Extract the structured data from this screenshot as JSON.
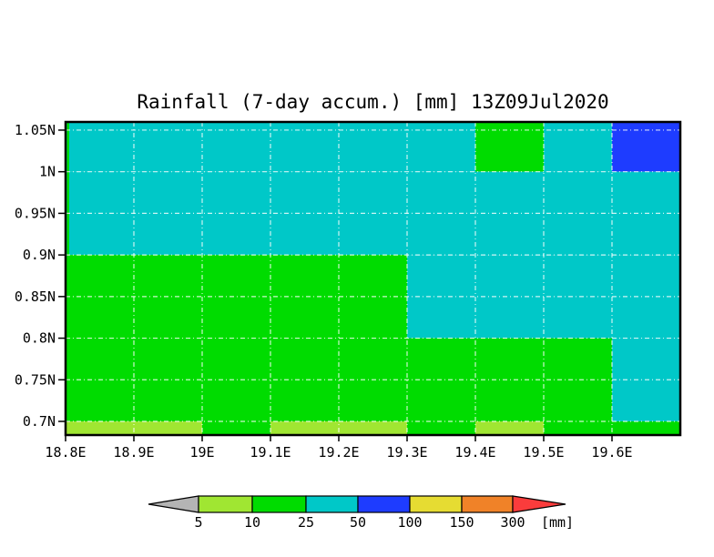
{
  "title": "Rainfall (7-day accum.) [mm] 13Z09Jul2020",
  "chart_data": {
    "type": "heatmap",
    "title": "Rainfall (7-day accum.) [mm] 13Z09Jul2020",
    "unit": "mm",
    "x_axis": {
      "ticks": [
        {
          "lon": 18.8,
          "label": "18.8E"
        },
        {
          "lon": 18.9,
          "label": "18.9E"
        },
        {
          "lon": 19.0,
          "label": "19E"
        },
        {
          "lon": 19.1,
          "label": "19.1E"
        },
        {
          "lon": 19.2,
          "label": "19.2E"
        },
        {
          "lon": 19.3,
          "label": "19.3E"
        },
        {
          "lon": 19.4,
          "label": "19.4E"
        },
        {
          "lon": 19.5,
          "label": "19.5E"
        },
        {
          "lon": 19.6,
          "label": "19.6E"
        }
      ],
      "range": [
        18.8,
        19.7
      ]
    },
    "y_axis": {
      "ticks": [
        {
          "lat": 1.05,
          "label": "1.05N"
        },
        {
          "lat": 1.0,
          "label": "1N"
        },
        {
          "lat": 0.95,
          "label": "0.95N"
        },
        {
          "lat": 0.9,
          "label": "0.9N"
        },
        {
          "lat": 0.85,
          "label": "0.85N"
        },
        {
          "lat": 0.8,
          "label": "0.8N"
        },
        {
          "lat": 0.75,
          "label": "0.75N"
        },
        {
          "lat": 0.7,
          "label": "0.7N"
        }
      ],
      "range_top": 1.0598,
      "range_bottom": 0.6836
    },
    "grid_on": true,
    "col_edges_lon": [
      18.8,
      18.9,
      19.0,
      19.1,
      19.2,
      19.3,
      19.4,
      19.5,
      19.6,
      19.7
    ],
    "row_edges_lat": [
      1.0598,
      1.0,
      0.9,
      0.8,
      0.7,
      0.6836
    ],
    "cells_rainfall_range_mm": [
      [
        "25-50",
        "25-50",
        "25-50",
        "25-50",
        "25-50",
        "25-50",
        "10-25",
        "25-50",
        "50-100"
      ],
      [
        "25-50",
        "25-50",
        "25-50",
        "25-50",
        "25-50",
        "25-50",
        "25-50",
        "25-50",
        "25-50"
      ],
      [
        "10-25",
        "10-25",
        "10-25",
        "10-25",
        "10-25",
        "25-50",
        "25-50",
        "25-50",
        "25-50"
      ],
      [
        "10-25",
        "10-25",
        "10-25",
        "10-25",
        "10-25",
        "10-25",
        "10-25",
        "10-25",
        "25-50"
      ],
      [
        "5-10",
        "5-10",
        "10-25",
        "5-10",
        "5-10",
        "10-25",
        "5-10",
        "10-25",
        "10-25"
      ]
    ],
    "palette": {
      "<5": "#b4b4b4",
      "5-10": "#a0e632",
      "10-25": "#00dc00",
      "25-50": "#00c8c8",
      "50-100": "#1e3cff",
      "100-150": "#e6dc32",
      "150-300": "#f08228",
      ">300": "#fa3c3c"
    },
    "gridline_color": "rgba(255,255,255,0.8)"
  },
  "colorbar": {
    "tick_labels": [
      "5",
      "10",
      "25",
      "50",
      "100",
      "150",
      "300"
    ],
    "unit_label": "[mm]",
    "segments": [
      "<5",
      "5-10",
      "10-25",
      "25-50",
      "50-100",
      "100-150",
      "150-300",
      ">300"
    ]
  }
}
